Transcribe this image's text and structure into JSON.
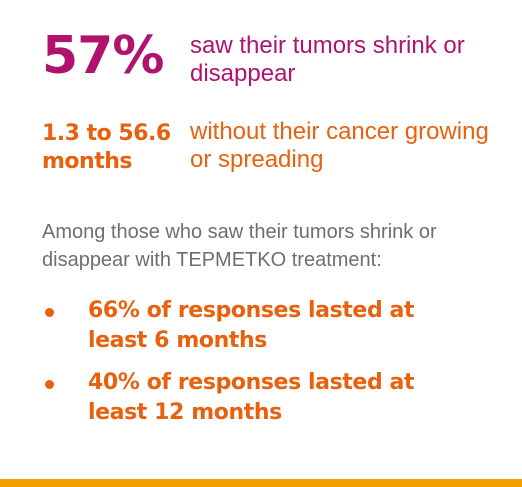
{
  "stats": [
    {
      "value": "57%",
      "description": "saw their tumors shrink or disappear"
    },
    {
      "value": "1.3 to 56.6 months",
      "description": "without their cancer growing or spreading"
    }
  ],
  "intro": "Among those who saw their tumors shrink or disappear with TEPMETKO treatment:",
  "bullets": [
    "66% of responses lasted at least 6 months",
    "40% of responses lasted at least 12 months"
  ],
  "colors": {
    "magenta": "#b0136e",
    "orange": "#e8610e",
    "gray_text": "#6e6e6e",
    "bottom_bar": "#f5a000"
  }
}
